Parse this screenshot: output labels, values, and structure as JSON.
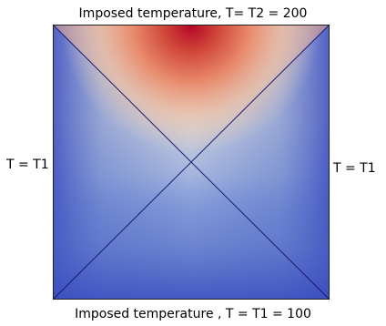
{
  "labels": {
    "top": "Imposed temperature, T= T2 = 200",
    "bottom": "Imposed temperature , T = T1 = 100",
    "left": "T = T1",
    "right": "T = T1"
  },
  "colors": {
    "cold": "#3a4cc0",
    "hot": "#c23b22",
    "neutral": "#dddddd",
    "diagonals": "#1a1a6e",
    "border": "#222222"
  }
}
